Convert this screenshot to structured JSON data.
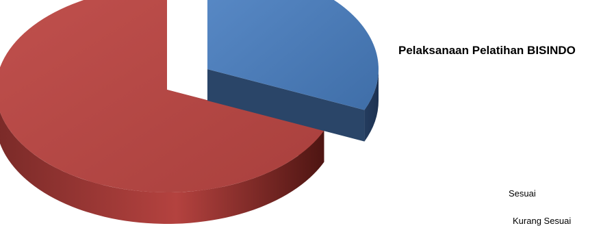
{
  "chart_data": {
    "type": "pie",
    "title": "Pelaksanaan Pelatihan BISINDO",
    "style": "3d-exploded",
    "categories": [
      "Sesuai",
      "Kurang Sesuai"
    ],
    "values": [
      31.5,
      68.5
    ],
    "colors": [
      "#4f81bd",
      "#c0504d"
    ],
    "legend_position": "bottom-right"
  }
}
